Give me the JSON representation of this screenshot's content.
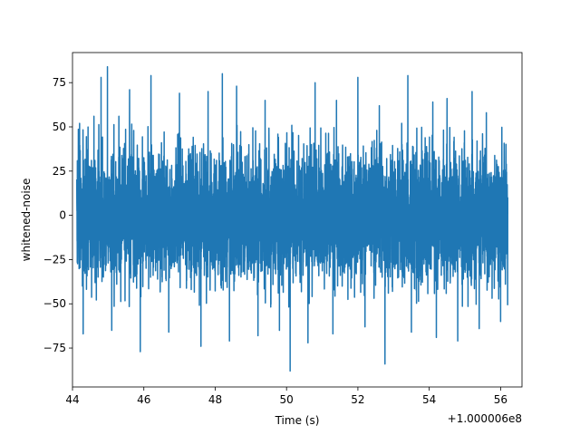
{
  "chart_data": {
    "type": "line",
    "title": "",
    "xlabel": "Time (s)",
    "ylabel": "whitened-noise",
    "x_offset_label": "+1.000006e8",
    "xlim": [
      44.0,
      56.6
    ],
    "ylim": [
      -97,
      92
    ],
    "xticks": [
      44,
      46,
      48,
      50,
      52,
      54,
      56
    ],
    "xtick_labels": [
      "44",
      "46",
      "48",
      "50",
      "52",
      "54",
      "56"
    ],
    "yticks": [
      -75,
      -50,
      -25,
      0,
      25,
      50,
      75
    ],
    "ytick_labels": [
      "−75",
      "−50",
      "−25",
      "0",
      "25",
      "50",
      "75"
    ],
    "grid": false,
    "series": [
      {
        "color": "#1f77b4",
        "x_range": [
          44.12,
          56.2
        ],
        "noise_std": 18,
        "upper_peaks": [
          {
            "x": 44.2,
            "y": 52
          },
          {
            "x": 44.6,
            "y": 56
          },
          {
            "x": 44.8,
            "y": 78
          },
          {
            "x": 44.98,
            "y": 84
          },
          {
            "x": 45.3,
            "y": 56
          },
          {
            "x": 45.6,
            "y": 71
          },
          {
            "x": 46.2,
            "y": 79
          },
          {
            "x": 47.0,
            "y": 69
          },
          {
            "x": 47.8,
            "y": 70
          },
          {
            "x": 48.2,
            "y": 80
          },
          {
            "x": 48.6,
            "y": 73
          },
          {
            "x": 49.4,
            "y": 65
          },
          {
            "x": 50.1,
            "y": 62
          },
          {
            "x": 50.8,
            "y": 75
          },
          {
            "x": 51.4,
            "y": 65
          },
          {
            "x": 52.0,
            "y": 78
          },
          {
            "x": 52.6,
            "y": 62
          },
          {
            "x": 53.4,
            "y": 79
          },
          {
            "x": 54.1,
            "y": 64
          },
          {
            "x": 54.5,
            "y": 66
          },
          {
            "x": 55.2,
            "y": 70
          },
          {
            "x": 55.6,
            "y": 58
          },
          {
            "x": 56.0,
            "y": 52
          }
        ],
        "lower_peaks": [
          {
            "x": 44.3,
            "y": -67
          },
          {
            "x": 45.1,
            "y": -65
          },
          {
            "x": 45.9,
            "y": -77
          },
          {
            "x": 46.7,
            "y": -66
          },
          {
            "x": 47.6,
            "y": -74
          },
          {
            "x": 48.4,
            "y": -71
          },
          {
            "x": 49.2,
            "y": -68
          },
          {
            "x": 49.8,
            "y": -65
          },
          {
            "x": 50.1,
            "y": -88
          },
          {
            "x": 50.6,
            "y": -72
          },
          {
            "x": 51.3,
            "y": -67
          },
          {
            "x": 52.2,
            "y": -63
          },
          {
            "x": 52.76,
            "y": -84
          },
          {
            "x": 53.5,
            "y": -66
          },
          {
            "x": 54.2,
            "y": -69
          },
          {
            "x": 54.8,
            "y": -71
          },
          {
            "x": 55.4,
            "y": -64
          },
          {
            "x": 56.0,
            "y": -60
          }
        ]
      }
    ]
  }
}
